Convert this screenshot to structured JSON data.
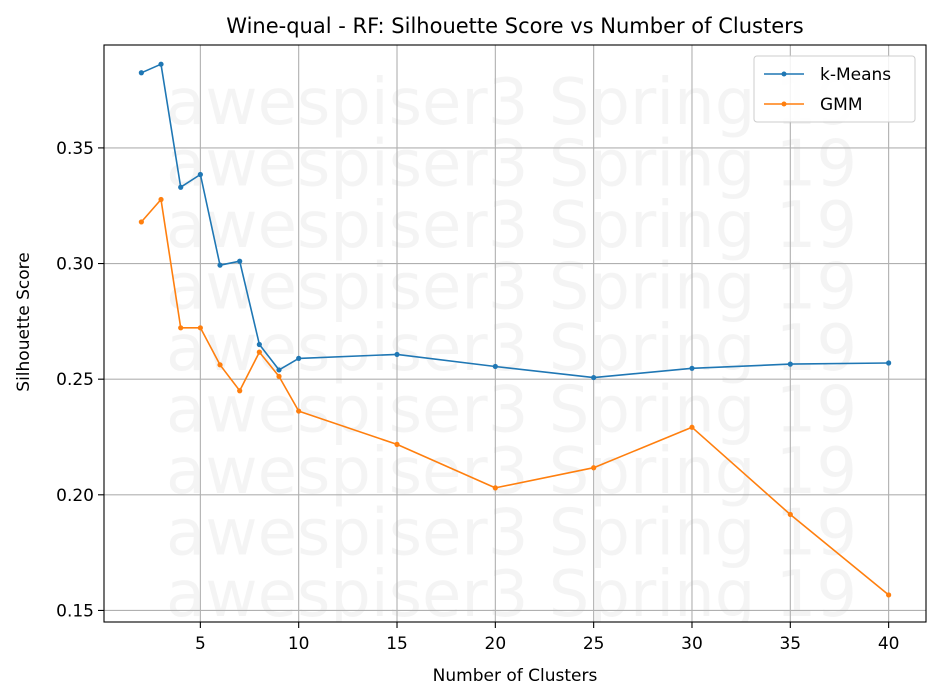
{
  "chart_data": {
    "type": "line",
    "title": "Wine-qual - RF: Silhouette Score vs Number of Clusters",
    "xlabel": "Number of Clusters",
    "ylabel": "Silhouette Score",
    "xlim": [
      0.1,
      41.9
    ],
    "ylim": [
      0.145,
      0.3945
    ],
    "xticks": [
      5,
      10,
      15,
      20,
      25,
      30,
      35,
      40
    ],
    "xtick_labels": [
      "5",
      "10",
      "15",
      "20",
      "25",
      "30",
      "35",
      "40"
    ],
    "yticks": [
      0.15,
      0.2,
      0.25,
      0.3,
      0.35
    ],
    "ytick_labels": [
      "0.15",
      "0.20",
      "0.25",
      "0.30",
      "0.35"
    ],
    "grid": true,
    "legend_position": "top-right",
    "x": [
      2,
      3,
      4,
      5,
      6,
      7,
      8,
      9,
      10,
      15,
      20,
      25,
      30,
      35,
      40
    ],
    "series": [
      {
        "name": "k-Means",
        "color": "#1f77b4",
        "values": [
          0.3825,
          0.3862,
          0.333,
          0.3385,
          0.2993,
          0.301,
          0.265,
          0.254,
          0.259,
          0.2607,
          0.2555,
          0.2507,
          0.2547,
          0.2565,
          0.257
        ]
      },
      {
        "name": "GMM",
        "color": "#ff7f0e",
        "values": [
          0.318,
          0.3277,
          0.2722,
          0.2722,
          0.2562,
          0.245,
          0.2617,
          0.2512,
          0.2362,
          0.2218,
          0.203,
          0.2117,
          0.2292,
          0.1915,
          0.1567
        ]
      }
    ],
    "watermark": "awespiser3 Spring 19"
  }
}
